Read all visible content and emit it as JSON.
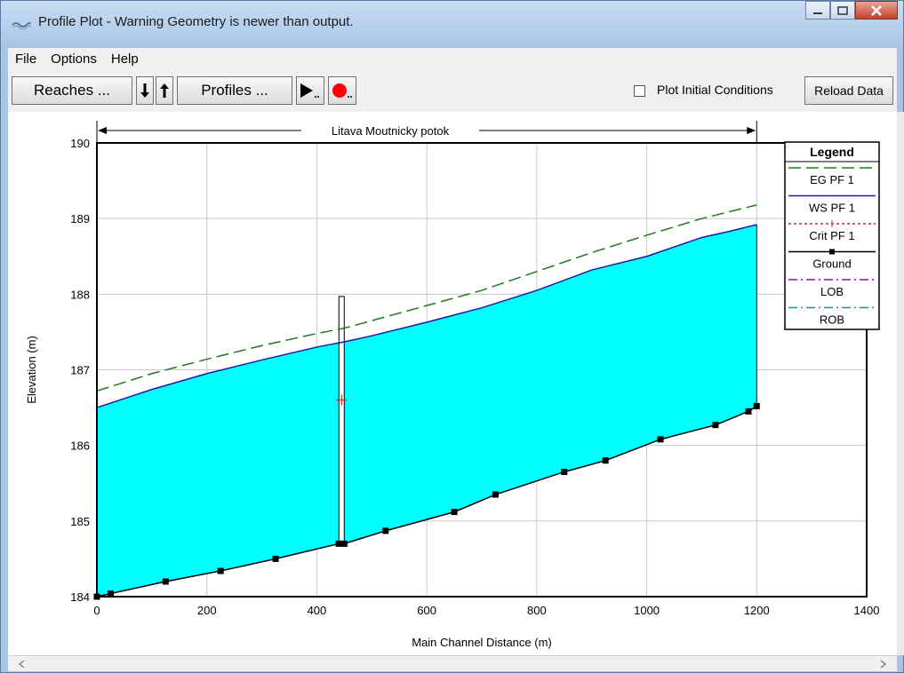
{
  "window": {
    "title": "Profile Plot - Warning Geometry is newer than output.",
    "icon": "hec-ras-wave-icon"
  },
  "menu": [
    "File",
    "Options",
    "Help"
  ],
  "toolbar": {
    "reaches_label": "Reaches ...",
    "profiles_label": "Profiles ...",
    "plot_initial_label": "Plot Initial Conditions",
    "plot_initial_checked": false,
    "reload_label": "Reload Data"
  },
  "chart_data": {
    "type": "line",
    "reach_label": "Litava Moutnicky potok",
    "xlabel": "Main Channel Distance (m)",
    "ylabel": "Elevation (m)",
    "xlim": [
      0,
      1400
    ],
    "ylim": [
      184,
      190
    ],
    "xticks": [
      0,
      200,
      400,
      600,
      800,
      1000,
      1200,
      1400
    ],
    "yticks": [
      184,
      185,
      186,
      187,
      188,
      189,
      190
    ],
    "grid": true,
    "legend_title": "Legend",
    "legend_placement": "right",
    "series": [
      {
        "name": "EG  PF 1",
        "color": "#1f7a1f",
        "style": "dashed",
        "x": [
          0,
          100,
          200,
          300,
          400,
          450,
          500,
          600,
          700,
          800,
          900,
          1000,
          1100,
          1200
        ],
        "y": [
          186.72,
          186.95,
          187.14,
          187.32,
          187.48,
          187.55,
          187.65,
          187.85,
          188.05,
          188.3,
          188.55,
          188.78,
          189.0,
          189.18
        ]
      },
      {
        "name": "WS  PF 1",
        "color": "#1a1aa6",
        "style": "solid",
        "x": [
          0,
          100,
          200,
          300,
          400,
          450,
          500,
          600,
          700,
          800,
          900,
          1000,
          1100,
          1150,
          1200
        ],
        "y": [
          186.5,
          186.74,
          186.95,
          187.13,
          187.3,
          187.37,
          187.45,
          187.63,
          187.82,
          188.05,
          188.32,
          188.5,
          188.75,
          188.83,
          188.92
        ]
      },
      {
        "name": "Crit  PF 1",
        "color": "#e02020",
        "style": "dotted",
        "x": [
          445
        ],
        "y": [
          186.6
        ]
      },
      {
        "name": "Ground",
        "color": "#000000",
        "style": "solid-square",
        "x": [
          0,
          25,
          125,
          225,
          325,
          440,
          450,
          525,
          650,
          725,
          850,
          925,
          1025,
          1125,
          1185,
          1200
        ],
        "y": [
          184.0,
          184.04,
          184.2,
          184.34,
          184.5,
          184.7,
          184.7,
          184.87,
          185.12,
          185.35,
          185.65,
          185.8,
          186.08,
          186.27,
          186.45,
          186.52
        ]
      },
      {
        "name": "LOB",
        "color": "#8a1f8a",
        "style": "dashdot",
        "x": [],
        "y": []
      },
      {
        "name": "ROB",
        "color": "#1f8a8a",
        "style": "dashdot",
        "x": [],
        "y": []
      }
    ],
    "structure": {
      "x": 445,
      "bottom": 184.7,
      "top": 187.97
    },
    "fill_color": "#00ffff"
  }
}
